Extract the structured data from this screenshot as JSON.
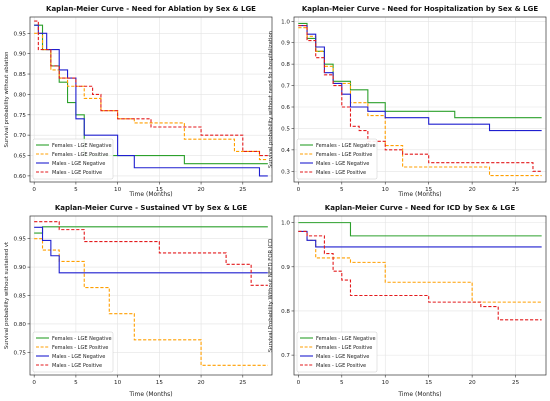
{
  "chart_data": [
    {
      "type": "line",
      "step": true,
      "title": "Kaplan-Meier Curve - Need for Ablation by Sex & LGE",
      "xlabel": "Time (Months)",
      "ylabel": "Survival probability without ablation",
      "xlim": [
        -0.5,
        28.5
      ],
      "ylim": [
        0.585,
        0.99
      ],
      "xticks": [
        0,
        5,
        10,
        15,
        20,
        25
      ],
      "yticks": [
        0.6,
        0.65,
        0.7,
        0.75,
        0.8,
        0.85,
        0.9,
        0.95
      ],
      "yticklabels": [
        "0.60",
        "0.65",
        "0.70",
        "0.75",
        "0.80",
        "0.85",
        "0.90",
        "0.95"
      ],
      "grid": true,
      "legend": "bottom-left",
      "series": [
        {
          "name": "Females - LGE Negative",
          "color": "#2ca02c",
          "dash": "solid",
          "x": [
            0,
            1,
            2,
            3,
            4,
            5,
            6,
            18,
            28
          ],
          "y": [
            0.97,
            0.91,
            0.87,
            0.83,
            0.78,
            0.75,
            0.65,
            0.63,
            0.63
          ]
        },
        {
          "name": "Females - LGE Positive",
          "color": "#ff9f00",
          "dash": "dashed",
          "x": [
            0,
            1,
            2,
            3,
            4,
            6,
            8,
            10,
            12,
            18,
            24,
            27,
            28
          ],
          "y": [
            0.95,
            0.91,
            0.86,
            0.84,
            0.82,
            0.79,
            0.76,
            0.74,
            0.73,
            0.69,
            0.66,
            0.64,
            0.64
          ]
        },
        {
          "name": "Males - LGE Negative",
          "color": "#1f1fcf",
          "dash": "solid",
          "x": [
            0,
            0.5,
            1.5,
            3,
            4,
            5,
            6,
            10,
            12,
            27,
            28
          ],
          "y": [
            0.97,
            0.95,
            0.91,
            0.86,
            0.84,
            0.74,
            0.7,
            0.65,
            0.62,
            0.6,
            0.6
          ]
        },
        {
          "name": "Males - LGE Positive",
          "color": "#e31a1c",
          "dash": "dashed",
          "x": [
            0,
            0.5,
            2,
            3,
            5,
            7,
            8,
            10,
            14,
            20,
            25,
            27,
            28
          ],
          "y": [
            0.98,
            0.91,
            0.87,
            0.84,
            0.82,
            0.8,
            0.76,
            0.74,
            0.72,
            0.7,
            0.66,
            0.65,
            0.65
          ]
        }
      ]
    },
    {
      "type": "line",
      "step": true,
      "title": "Kaplan-Meier Curve - Need for Hospitalization by Sex & LGE",
      "xlabel": "Time (Months)",
      "ylabel": "Survival probability without need for hospitalization",
      "xlim": [
        -0.5,
        28.5
      ],
      "ylim": [
        0.25,
        1.02
      ],
      "xticks": [
        0,
        5,
        10,
        15,
        20,
        25
      ],
      "yticks": [
        0.3,
        0.4,
        0.5,
        0.6,
        0.7,
        0.8,
        0.9,
        1.0
      ],
      "yticklabels": [
        "0.3",
        "0.4",
        "0.5",
        "0.6",
        "0.7",
        "0.8",
        "0.9",
        "1.0"
      ],
      "grid": true,
      "legend": "bottom-left",
      "series": [
        {
          "name": "Females - LGE Negative",
          "color": "#2ca02c",
          "dash": "solid",
          "x": [
            0,
            1,
            2,
            3,
            4,
            6,
            8,
            10,
            18,
            28
          ],
          "y": [
            0.99,
            0.92,
            0.86,
            0.8,
            0.72,
            0.68,
            0.62,
            0.58,
            0.55,
            0.55
          ]
        },
        {
          "name": "Females - LGE Positive",
          "color": "#ff9f00",
          "dash": "dashed",
          "x": [
            0,
            1,
            2,
            3,
            4,
            6,
            8,
            10,
            12,
            22,
            28
          ],
          "y": [
            0.97,
            0.93,
            0.86,
            0.79,
            0.71,
            0.62,
            0.56,
            0.42,
            0.32,
            0.28,
            0.28
          ]
        },
        {
          "name": "Males - LGE Negative",
          "color": "#1f1fcf",
          "dash": "solid",
          "x": [
            0,
            1,
            2,
            3,
            4,
            5,
            6,
            8,
            10,
            15,
            22,
            28
          ],
          "y": [
            0.98,
            0.94,
            0.88,
            0.76,
            0.71,
            0.66,
            0.6,
            0.58,
            0.55,
            0.52,
            0.49,
            0.49
          ]
        },
        {
          "name": "Males - LGE Positive",
          "color": "#e31a1c",
          "dash": "dashed",
          "x": [
            0,
            1,
            2,
            3,
            4,
            5,
            6,
            7,
            8,
            10,
            12,
            15,
            27,
            28
          ],
          "y": [
            0.98,
            0.91,
            0.83,
            0.75,
            0.7,
            0.6,
            0.51,
            0.49,
            0.44,
            0.4,
            0.38,
            0.34,
            0.3,
            0.3
          ]
        }
      ]
    },
    {
      "type": "line",
      "step": true,
      "title": "Kaplan-Meier Curve - Sustained VT by Sex & LGE",
      "xlabel": "Time (Months)",
      "ylabel": "Survival probability without sustained vt",
      "xlim": [
        -0.5,
        28.5
      ],
      "ylim": [
        0.71,
        0.99
      ],
      "xticks": [
        0,
        5,
        10,
        15,
        20,
        25
      ],
      "yticks": [
        0.75,
        0.8,
        0.85,
        0.9,
        0.95
      ],
      "yticklabels": [
        "0.75",
        "0.80",
        "0.85",
        "0.90",
        "0.95"
      ],
      "grid": true,
      "legend": "bottom-left",
      "series": [
        {
          "name": "Females - LGE Negative",
          "color": "#2ca02c",
          "dash": "solid",
          "x": [
            0,
            1,
            28
          ],
          "y": [
            0.96,
            0.971,
            0.971
          ]
        },
        {
          "name": "Females - LGE Positive",
          "color": "#ff9f00",
          "dash": "dashed",
          "x": [
            0,
            1,
            3,
            6,
            9,
            12,
            20,
            28
          ],
          "y": [
            0.95,
            0.93,
            0.91,
            0.864,
            0.818,
            0.772,
            0.727,
            0.727
          ]
        },
        {
          "name": "Males - LGE Negative",
          "color": "#1f1fcf",
          "dash": "solid",
          "x": [
            0,
            1,
            2,
            3,
            24,
            28
          ],
          "y": [
            0.97,
            0.947,
            0.92,
            0.89,
            0.89,
            0.89
          ]
        },
        {
          "name": "Males - LGE Positive",
          "color": "#e31a1c",
          "dash": "dashed",
          "x": [
            0,
            3,
            6,
            15,
            23,
            26,
            28
          ],
          "y": [
            0.98,
            0.966,
            0.945,
            0.925,
            0.905,
            0.868,
            0.868
          ]
        }
      ]
    },
    {
      "type": "line",
      "step": true,
      "title": "Kaplan-Meier Curve - Need for ICD by Sex & LGE",
      "xlabel": "Time (Months)",
      "ylabel": "Survival Probability Without NEED FOR ICD",
      "xlim": [
        -0.5,
        28.5
      ],
      "ylim": [
        0.655,
        1.015
      ],
      "xticks": [
        0,
        5,
        10,
        15,
        20,
        25
      ],
      "yticks": [
        0.7,
        0.8,
        0.9,
        1.0
      ],
      "yticklabels": [
        "0.7",
        "0.8",
        "0.9",
        "1.0"
      ],
      "grid": true,
      "legend": "bottom-left",
      "series": [
        {
          "name": "Females - LGE Negative",
          "color": "#2ca02c",
          "dash": "solid",
          "x": [
            0,
            6,
            28
          ],
          "y": [
            1.0,
            0.97,
            0.97
          ]
        },
        {
          "name": "Females - LGE Positive",
          "color": "#ff9f00",
          "dash": "dashed",
          "x": [
            0,
            1,
            2,
            6,
            10,
            20,
            28
          ],
          "y": [
            0.98,
            0.96,
            0.92,
            0.91,
            0.865,
            0.82,
            0.82
          ]
        },
        {
          "name": "Males - LGE Negative",
          "color": "#1f1fcf",
          "dash": "solid",
          "x": [
            0,
            1,
            2,
            28
          ],
          "y": [
            0.98,
            0.96,
            0.945,
            0.945
          ]
        },
        {
          "name": "Males - LGE Positive",
          "color": "#e31a1c",
          "dash": "dashed",
          "x": [
            0,
            1,
            3,
            4,
            5,
            6,
            15,
            21,
            23,
            28
          ],
          "y": [
            0.98,
            0.97,
            0.93,
            0.89,
            0.87,
            0.835,
            0.82,
            0.81,
            0.78,
            0.78
          ]
        }
      ]
    }
  ]
}
